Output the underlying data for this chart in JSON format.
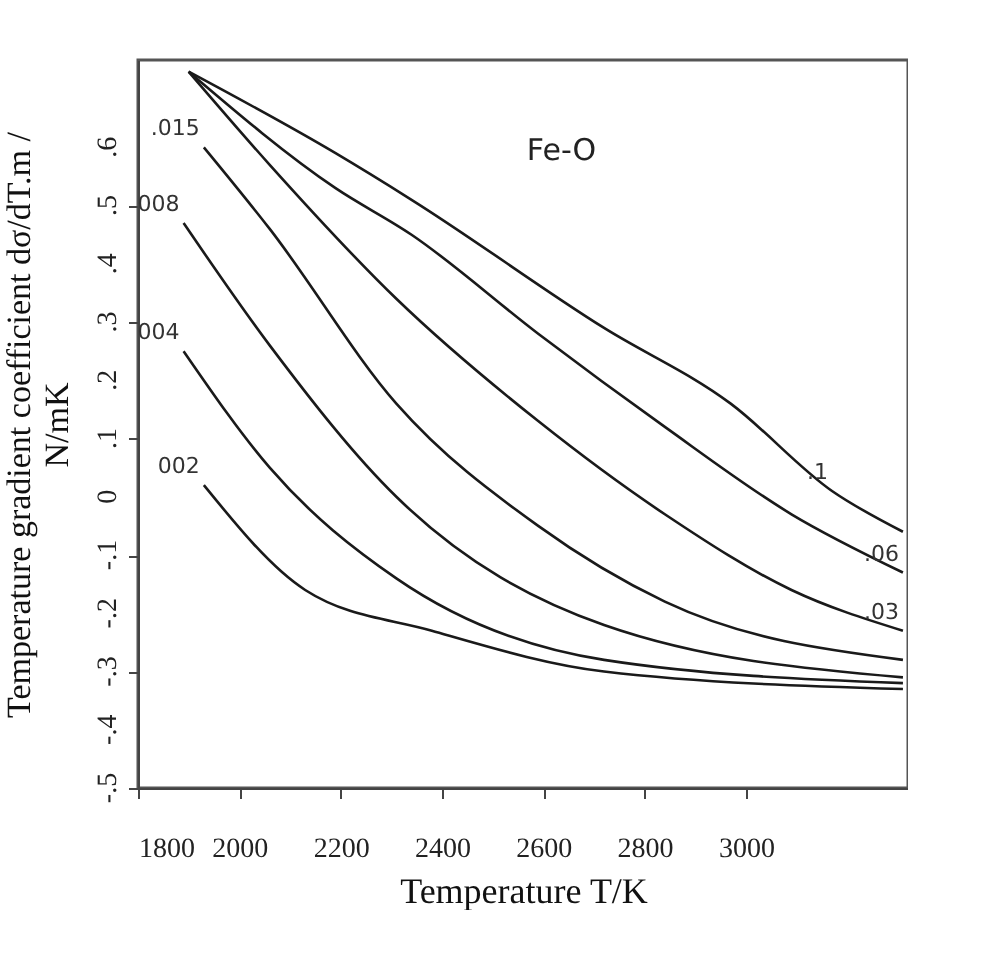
{
  "chart_data": {
    "type": "line",
    "xlabel": "Temperature T/K",
    "ylabel": "Temperature gradient coefficient dσ/dT.m /\nN/mK",
    "xlim": [
      1800,
      3320
    ],
    "xticks": [
      1800,
      2000,
      2200,
      2400,
      2600,
      2800,
      3000
    ],
    "ylim": [
      -0.5,
      0.75
    ],
    "yticks": [
      {
        "value": -0.5,
        "label": "-.5"
      },
      {
        "value": -0.4,
        "label": "-.4"
      },
      {
        "value": -0.3,
        "label": "-.3"
      },
      {
        "value": -0.2,
        "label": "-.2"
      },
      {
        "value": -0.1,
        "label": "-.1"
      },
      0,
      {
        "value": 0.1,
        "label": ".1"
      },
      {
        "value": 0.2,
        "label": ".2"
      },
      {
        "value": 0.3,
        "label": ".3"
      },
      {
        "value": 0.4,
        "label": ".4"
      },
      {
        "value": 0.5,
        "label": ".5"
      },
      {
        "value": 0.6,
        "label": ".6"
      }
    ],
    "grid": false,
    "legend": false,
    "marker": "none",
    "line_style": "solid",
    "series": [
      {
        "color": "#1a1a1a",
        "x": [
          1900,
          2190,
          2340,
          2720,
          2970,
          3170,
          3310
        ],
        "values": [
          0.73,
          0.59,
          0.51,
          0.29,
          0.16,
          0.01,
          -0.06
        ]
      },
      {
        "color": "#1a1a1a",
        "x": [
          1900,
          2190,
          2340,
          2590,
          2840,
          3090,
          3310
        ],
        "values": [
          0.73,
          0.53,
          0.45,
          0.28,
          0.12,
          -0.03,
          -0.13
        ]
      },
      {
        "color": "#1a1a1a",
        "x": [
          1900,
          2060,
          2310,
          2590,
          2840,
          3090,
          3310
        ],
        "values": [
          0.73,
          0.57,
          0.34,
          0.13,
          -0.03,
          -0.16,
          -0.23
        ]
      },
      {
        "color": "#1a1a1a",
        "x": [
          1930,
          2060,
          2310,
          2590,
          2840,
          3310
        ],
        "values": [
          0.6,
          0.46,
          0.16,
          -0.05,
          -0.18,
          -0.28
        ]
      },
      {
        "color": "#1a1a1a",
        "x": [
          1890,
          2060,
          2310,
          2720,
          3310
        ],
        "values": [
          0.47,
          0.26,
          0.0,
          -0.22,
          -0.31
        ]
      },
      {
        "color": "#1a1a1a",
        "x": [
          1890,
          2060,
          2310,
          2720,
          3310
        ],
        "values": [
          0.25,
          0.05,
          -0.14,
          -0.28,
          -0.32
        ]
      },
      {
        "color": "#1a1a1a",
        "x": [
          1930,
          2130,
          2380,
          2720,
          3310
        ],
        "values": [
          0.02,
          -0.16,
          -0.23,
          -0.3,
          -0.33
        ]
      }
    ],
    "annotations": [
      "Fe-O",
      {
        "text": ".1",
        "x": 3170,
        "y": 0.01
      },
      {
        "text": ".06",
        "x": 3310,
        "y": -0.13
      },
      {
        "text": ".03",
        "x": 3310,
        "y": -0.23
      },
      {
        "text": ".015",
        "x": 1930,
        "y": 0.6
      },
      {
        "text": "008",
        "x": 1890,
        "y": 0.47
      },
      {
        "text": "004",
        "x": 1890,
        "y": 0.25
      },
      {
        "text": "002",
        "x": 1930,
        "y": 0.02
      }
    ]
  }
}
